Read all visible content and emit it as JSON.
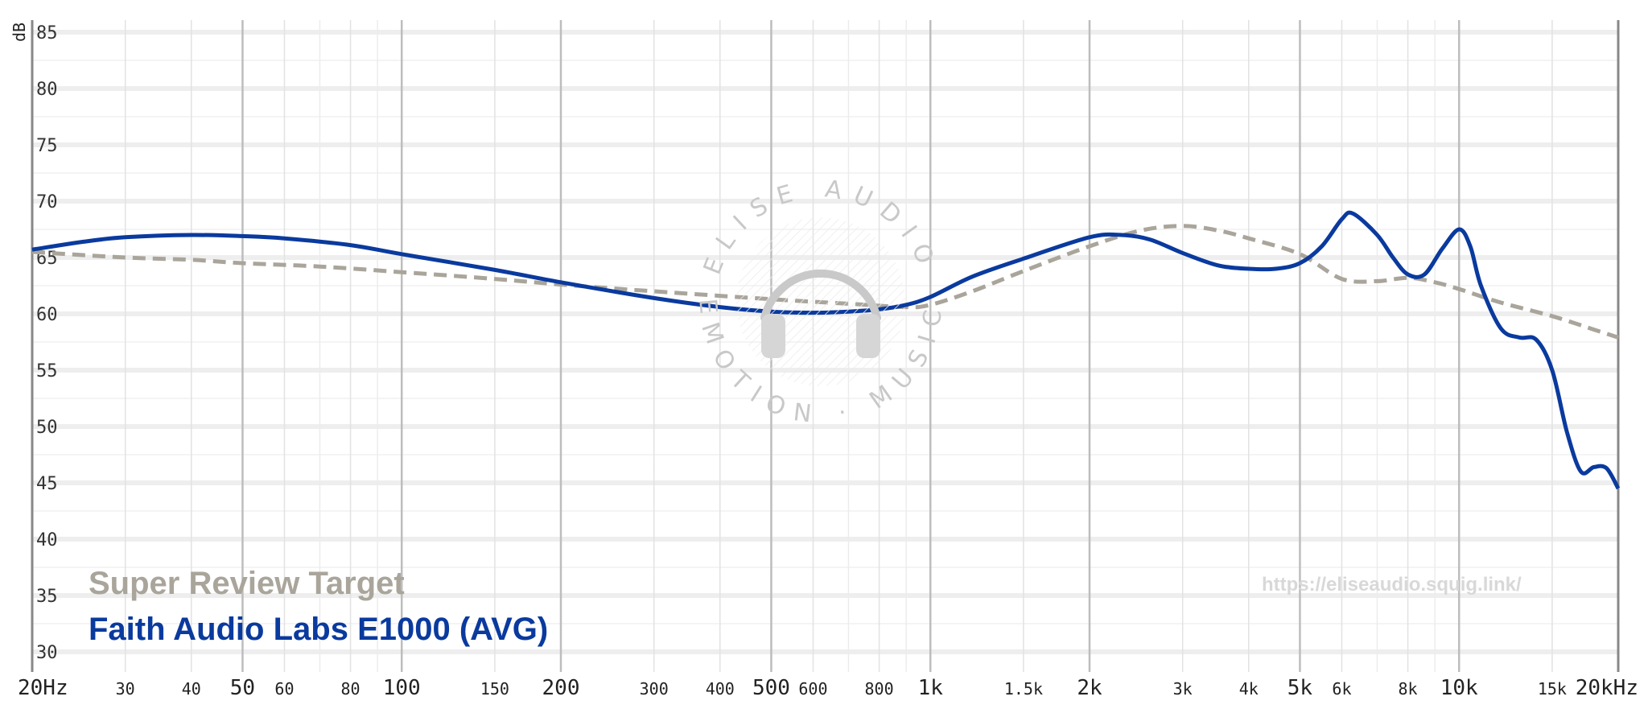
{
  "chart_data": {
    "type": "line",
    "xscale": "log",
    "xlim": [
      20,
      20000
    ],
    "ylim": [
      30,
      85
    ],
    "ylabel": "dB",
    "yticks": [
      "85",
      "80",
      "75",
      "70",
      "65",
      "60",
      "55",
      "50",
      "45",
      "40",
      "35",
      "30"
    ],
    "ytick_values": [
      85,
      80,
      75,
      70,
      65,
      60,
      55,
      50,
      45,
      40,
      35,
      30
    ],
    "xticks": [
      {
        "value": 20,
        "label": "20Hz",
        "major": true
      },
      {
        "value": 30,
        "label": "30",
        "major": false
      },
      {
        "value": 40,
        "label": "40",
        "major": false
      },
      {
        "value": 50,
        "label": "50",
        "major": true
      },
      {
        "value": 60,
        "label": "60",
        "major": false
      },
      {
        "value": 80,
        "label": "80",
        "major": false
      },
      {
        "value": 100,
        "label": "100",
        "major": true
      },
      {
        "value": 150,
        "label": "150",
        "major": false
      },
      {
        "value": 200,
        "label": "200",
        "major": true
      },
      {
        "value": 300,
        "label": "300",
        "major": false
      },
      {
        "value": 400,
        "label": "400",
        "major": false
      },
      {
        "value": 500,
        "label": "500",
        "major": true
      },
      {
        "value": 600,
        "label": "600",
        "major": false
      },
      {
        "value": 800,
        "label": "800",
        "major": false
      },
      {
        "value": 1000,
        "label": "1k",
        "major": true
      },
      {
        "value": 1500,
        "label": "1.5k",
        "major": false
      },
      {
        "value": 2000,
        "label": "2k",
        "major": true
      },
      {
        "value": 3000,
        "label": "3k",
        "major": false
      },
      {
        "value": 4000,
        "label": "4k",
        "major": false
      },
      {
        "value": 5000,
        "label": "5k",
        "major": true
      },
      {
        "value": 6000,
        "label": "6k",
        "major": false
      },
      {
        "value": 8000,
        "label": "8k",
        "major": false
      },
      {
        "value": 10000,
        "label": "10k",
        "major": true
      },
      {
        "value": 15000,
        "label": "15k",
        "major": false
      },
      {
        "value": 20000,
        "label": "20kHz",
        "major": true
      }
    ],
    "grid": true,
    "legend_position": "bottom-left",
    "series": [
      {
        "name": "Super Review Target",
        "color": "#aaa59b",
        "style": "dashed",
        "x": [
          20,
          30,
          40,
          50,
          70,
          100,
          150,
          200,
          300,
          500,
          700,
          900,
          1000,
          1200,
          1500,
          2000,
          2500,
          3000,
          3500,
          4000,
          5000,
          6000,
          7000,
          8000,
          9000,
          10000,
          12000,
          15000,
          18000,
          20000
        ],
        "y": [
          65.5,
          65.0,
          64.8,
          64.5,
          64.2,
          63.7,
          63.1,
          62.6,
          62.0,
          61.3,
          60.9,
          60.6,
          60.8,
          62.0,
          63.8,
          66.0,
          67.4,
          67.8,
          67.4,
          66.7,
          65.3,
          63.1,
          62.9,
          63.2,
          62.8,
          62.2,
          61.0,
          59.8,
          58.6,
          57.9
        ]
      },
      {
        "name": "Faith Audio Labs E1000 (AVG)",
        "color": "#0a3a9e",
        "style": "solid",
        "x": [
          20,
          25,
          30,
          40,
          50,
          60,
          80,
          100,
          150,
          200,
          300,
          400,
          500,
          600,
          700,
          800,
          900,
          1000,
          1200,
          1500,
          2000,
          2300,
          2600,
          3000,
          3500,
          4000,
          4500,
          5000,
          5500,
          6000,
          6300,
          7000,
          7500,
          8000,
          8600,
          9300,
          10000,
          10500,
          11000,
          12000,
          13000,
          14000,
          15000,
          16000,
          17000,
          18000,
          19000,
          20000
        ],
        "y": [
          65.7,
          66.4,
          66.8,
          67.0,
          66.9,
          66.7,
          66.1,
          65.3,
          63.9,
          62.8,
          61.4,
          60.6,
          60.2,
          60.1,
          60.2,
          60.4,
          60.8,
          61.5,
          63.3,
          64.9,
          66.8,
          67.0,
          66.6,
          65.4,
          64.3,
          64.0,
          64.0,
          64.5,
          66.0,
          68.4,
          68.9,
          67.0,
          65.0,
          63.5,
          63.5,
          65.8,
          67.5,
          66.0,
          62.5,
          58.7,
          57.9,
          57.7,
          55.0,
          49.5,
          46.0,
          46.4,
          46.3,
          44.5
        ]
      }
    ]
  },
  "watermark": {
    "brand": "ELISE AUDIO",
    "tagline": "EMOTION · MUSIC",
    "url": "https://eliseaudio.squig.link/"
  },
  "colors": {
    "target": "#aaa59b",
    "iem": "#0a3a9e",
    "grid_minor": "#e2e2e2",
    "grid_major": "#bdbdbd",
    "axis": "#888888"
  }
}
